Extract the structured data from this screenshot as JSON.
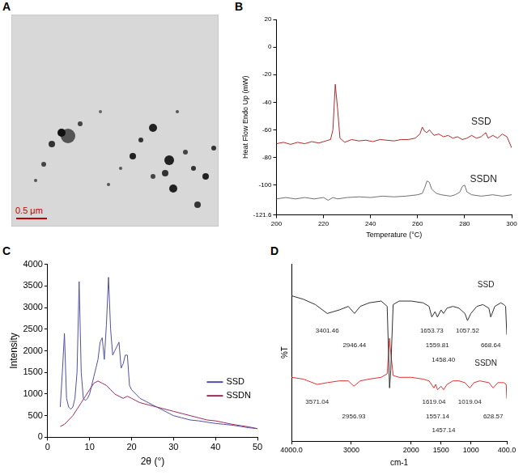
{
  "panel_a": {
    "label": "A",
    "scale_bar": "0.5 μm"
  },
  "chart_data": [
    {
      "panel": "B",
      "type": "line",
      "xlabel": "Temperature (°C)",
      "ylabel": "Heat Flow Endo Up (mW)",
      "xlim": [
        200,
        300
      ],
      "xticks": [
        200,
        220,
        240,
        260,
        280,
        300
      ],
      "ylim": [
        -121.6,
        20
      ],
      "yticks": [
        -121.6,
        -100,
        -80,
        -60,
        -40,
        -20,
        0,
        20
      ],
      "grid": false,
      "series": [
        {
          "name": "SSD",
          "color": "#b22a2a",
          "x": [
            200,
            203,
            206,
            209,
            212,
            215,
            218,
            221,
            223,
            224,
            225,
            226,
            227,
            229,
            232,
            235,
            238,
            241,
            244,
            247,
            250,
            253,
            256,
            259,
            261,
            262,
            263,
            264,
            265,
            266,
            267,
            269,
            271,
            273,
            275,
            277,
            279,
            281,
            283,
            285,
            287,
            289,
            290,
            292,
            294,
            296,
            298,
            300
          ],
          "values": [
            -70,
            -69,
            -70.5,
            -69,
            -70,
            -68.5,
            -69.5,
            -68,
            -67,
            -60,
            -27,
            -45,
            -66,
            -69,
            -67,
            -68,
            -67.5,
            -68.5,
            -67,
            -67.5,
            -68,
            -67,
            -67,
            -66,
            -63,
            -58,
            -61,
            -62,
            -60,
            -62,
            -64,
            -63,
            -65,
            -64,
            -66,
            -65,
            -67,
            -66,
            -64,
            -66,
            -65,
            -62,
            -66,
            -64,
            -66,
            -63,
            -65,
            -73
          ]
        },
        {
          "name": "SSDN",
          "color": "#707070",
          "x": [
            200,
            204,
            208,
            212,
            216,
            220,
            222,
            224,
            226,
            230,
            235,
            240,
            245,
            250,
            255,
            260,
            262,
            263,
            264,
            265,
            266,
            268,
            270,
            274,
            276,
            278,
            279,
            280,
            281,
            283,
            287,
            292,
            296,
            300
          ],
          "values": [
            -110,
            -109,
            -110,
            -109,
            -110,
            -109,
            -111,
            -109,
            -110,
            -109,
            -108.5,
            -109,
            -108,
            -108.5,
            -108,
            -107,
            -106,
            -102,
            -97,
            -98,
            -103,
            -106,
            -107,
            -108,
            -107,
            -105,
            -101,
            -100,
            -105,
            -107,
            -108,
            -107,
            -108,
            -107
          ]
        }
      ],
      "annotations": [
        {
          "text": "SSD",
          "x": 287,
          "y": -54
        },
        {
          "text": "SSDN",
          "x": 288,
          "y": -96
        }
      ]
    },
    {
      "panel": "C",
      "type": "line",
      "xlabel": "2θ (°)",
      "ylabel": "Intensity",
      "xlim": [
        0,
        50
      ],
      "xticks": [
        0,
        10,
        20,
        30,
        40,
        50
      ],
      "ylim": [
        0,
        4000
      ],
      "yticks": [
        0,
        500,
        1000,
        1500,
        2000,
        2500,
        3000,
        3500,
        4000
      ],
      "grid": false,
      "legend": "bottom-right",
      "series": [
        {
          "name": "SSD",
          "color": "#5050a8",
          "x": [
            3,
            3.5,
            4,
            4.5,
            5,
            5.5,
            6,
            6.5,
            7,
            7.5,
            8,
            8.5,
            9,
            9.5,
            10,
            10.5,
            11,
            11.5,
            12,
            12.5,
            13,
            13.5,
            14,
            14.5,
            15,
            15.5,
            16,
            16.5,
            17,
            17.5,
            18,
            18.5,
            19,
            19.5,
            20,
            21,
            22,
            23,
            24,
            25,
            26,
            27,
            28,
            29,
            30,
            32,
            34,
            36,
            38,
            40,
            42,
            44,
            46,
            48,
            50
          ],
          "values": [
            700,
            1500,
            2400,
            900,
            700,
            650,
            700,
            900,
            1500,
            3600,
            1500,
            900,
            850,
            900,
            1000,
            1200,
            1400,
            1600,
            1800,
            2200,
            2300,
            1800,
            2600,
            3700,
            2500,
            1900,
            2000,
            2100,
            2200,
            1600,
            1700,
            1900,
            1900,
            1200,
            1100,
            1000,
            900,
            850,
            800,
            750,
            700,
            650,
            600,
            550,
            500,
            450,
            400,
            380,
            350,
            320,
            300,
            280,
            250,
            220,
            200
          ]
        },
        {
          "name": "SSDN",
          "color": "#a0285a",
          "x": [
            3,
            4,
            5,
            6,
            7,
            8,
            9,
            10,
            11,
            12,
            13,
            14,
            15,
            16,
            17,
            18,
            19,
            20,
            21,
            22,
            24,
            26,
            28,
            30,
            32,
            34,
            36,
            38,
            40,
            42,
            44,
            46,
            48,
            50
          ],
          "values": [
            250,
            300,
            400,
            500,
            650,
            800,
            950,
            1100,
            1250,
            1300,
            1250,
            1200,
            1100,
            1000,
            950,
            900,
            950,
            900,
            850,
            800,
            750,
            700,
            650,
            600,
            550,
            500,
            450,
            400,
            380,
            340,
            300,
            270,
            240,
            200
          ]
        }
      ]
    },
    {
      "panel": "D",
      "type": "line",
      "xlabel": "cm-1",
      "ylabel": "%T",
      "xlim": [
        4000,
        400
      ],
      "xticks": [
        {
          "value": 400,
          "label": "400.0"
        },
        1000,
        1500,
        2000,
        3000,
        {
          "value": 4000,
          "label": "4000.0"
        }
      ],
      "ylim": [
        0,
        100
      ],
      "yticks": [],
      "grid": false,
      "tick_labels": "x",
      "series": [
        {
          "name": "SSD",
          "color": "#303030",
          "x": [
            4000,
            3800,
            3600,
            3401.46,
            3200,
            3050,
            2946.44,
            2850,
            2700,
            2500,
            2400,
            2360,
            2340,
            2300,
            2200,
            2000,
            1800,
            1700,
            1653.73,
            1600,
            1559.81,
            1500,
            1458.4,
            1400,
            1300,
            1200,
            1100,
            1057.52,
            1000,
            900,
            800,
            700,
            668.64,
            600,
            500,
            450,
            420,
            400
          ],
          "values": [
            82,
            80,
            77,
            72,
            74,
            76,
            72,
            76,
            78,
            79,
            76,
            30,
            40,
            77,
            79,
            79,
            78,
            76,
            70,
            73,
            70,
            74,
            72,
            75,
            76,
            75,
            72,
            68,
            72,
            76,
            77,
            75,
            70,
            76,
            78,
            77,
            76,
            60
          ]
        },
        {
          "name": "SSDN",
          "color": "#e03030",
          "x": [
            4000,
            3800,
            3571.04,
            3400,
            3200,
            3050,
            2956.93,
            2850,
            2700,
            2500,
            2400,
            2360,
            2340,
            2300,
            2200,
            2000,
            1800,
            1700,
            1619.04,
            1590,
            1557.14,
            1500,
            1457.14,
            1400,
            1300,
            1200,
            1100,
            1019.04,
            950,
            850,
            700,
            628.57,
            550,
            450,
            410,
            400
          ],
          "values": [
            36,
            35,
            32,
            33,
            34,
            34,
            31,
            34,
            35,
            36,
            38,
            58,
            50,
            37,
            36,
            36,
            35,
            34,
            30,
            32,
            29,
            31,
            29,
            32,
            34,
            34,
            33,
            30,
            33,
            34,
            33,
            30,
            33,
            33,
            32,
            24
          ]
        }
      ],
      "annotations": [
        {
          "text": "3401.46",
          "x": 3401.46,
          "y": 62
        },
        {
          "text": "2946.44",
          "x": 2946.44,
          "y": 54
        },
        {
          "text": "1653.73",
          "x": 1653.73,
          "y": 62
        },
        {
          "text": "1559.81",
          "x": 1559.81,
          "y": 54
        },
        {
          "text": "1458.40",
          "x": 1458.4,
          "y": 46
        },
        {
          "text": "1057.52",
          "x": 1057.52,
          "y": 62
        },
        {
          "text": "668.64",
          "x": 668.64,
          "y": 54
        },
        {
          "text": "3571.04",
          "x": 3571.04,
          "y": 22
        },
        {
          "text": "2956.93",
          "x": 2956.93,
          "y": 14
        },
        {
          "text": "1619.04",
          "x": 1619.04,
          "y": 22
        },
        {
          "text": "1557.14",
          "x": 1557.14,
          "y": 14
        },
        {
          "text": "1457.14",
          "x": 1457.14,
          "y": 6
        },
        {
          "text": "1019.04",
          "x": 1019.04,
          "y": 22
        },
        {
          "text": "628.57",
          "x": 628.57,
          "y": 14
        },
        {
          "text": "SSD",
          "x": 750,
          "y": 88
        },
        {
          "text": "SSDN",
          "x": 750,
          "y": 44
        }
      ]
    }
  ]
}
